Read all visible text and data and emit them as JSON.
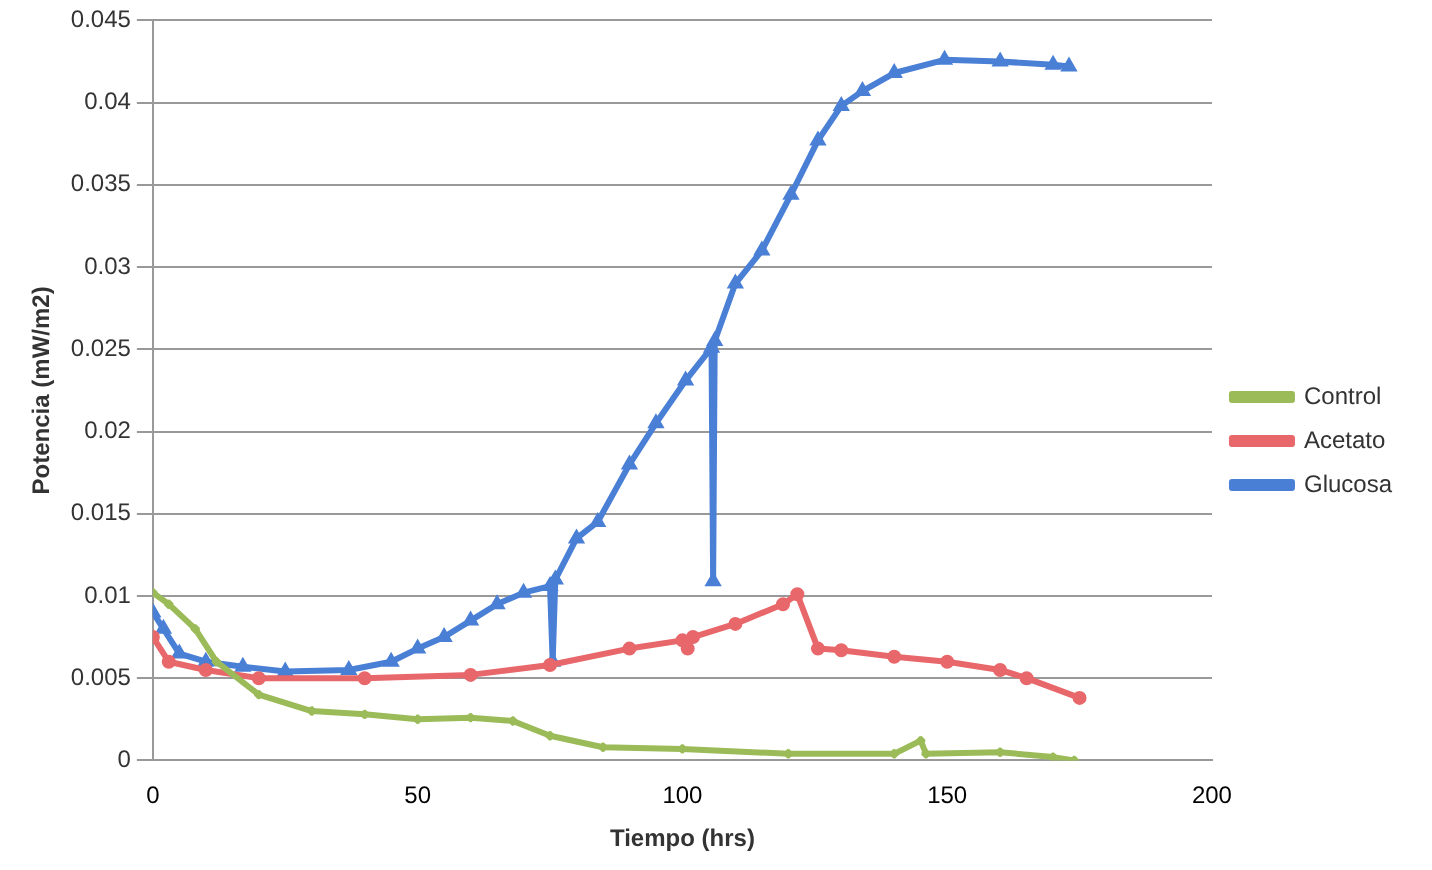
{
  "chart_data": {
    "type": "line",
    "xlabel": "Tiempo (hrs)",
    "ylabel": "Potencia (mW/m2)",
    "xlim": [
      0,
      200
    ],
    "xticks": [
      0,
      50,
      100,
      150,
      200
    ],
    "ylim": [
      0,
      0.045
    ],
    "yticks": [
      0,
      0.005,
      0.01,
      0.015,
      0.02,
      0.025,
      0.03,
      0.035,
      0.04,
      0.045
    ],
    "grid": "y",
    "legend": "right",
    "series": [
      {
        "name": "Glucosa",
        "color": "#4a7fd6",
        "marker": "triangle",
        "x": [
          0,
          2,
          5,
          10,
          17,
          25,
          37,
          45,
          50,
          55,
          60,
          65,
          70,
          75,
          75.5,
          76,
          80,
          84,
          90,
          95,
          100.6,
          105.5,
          105.8,
          106.1,
          110,
          115,
          120.5,
          125.6,
          130,
          134,
          140,
          149.5,
          160,
          170,
          173
        ],
        "values": [
          0.009,
          0.008,
          0.0065,
          0.006,
          0.0057,
          0.0054,
          0.0055,
          0.006,
          0.0068,
          0.0075,
          0.0085,
          0.0095,
          0.0102,
          0.0106,
          0.006,
          0.011,
          0.0135,
          0.0145,
          0.018,
          0.0205,
          0.0231,
          0.0251,
          0.0109,
          0.0255,
          0.029,
          0.031,
          0.0344,
          0.0377,
          0.0398,
          0.0407,
          0.0418,
          0.0426,
          0.0425,
          0.0423,
          0.0422
        ]
      },
      {
        "name": "Acetato",
        "color": "#e8676a",
        "marker": "circle",
        "x": [
          0,
          3,
          10,
          20,
          40,
          60,
          75,
          90,
          100,
          101,
          102,
          110,
          119,
          121.7,
          125.6,
          130,
          140,
          150,
          160,
          165,
          175
        ],
        "values": [
          0.0075,
          0.006,
          0.0055,
          0.005,
          0.005,
          0.0052,
          0.0058,
          0.0068,
          0.0073,
          0.0068,
          0.0075,
          0.0083,
          0.0095,
          0.0101,
          0.0068,
          0.0067,
          0.0063,
          0.006,
          0.0055,
          0.005,
          0.0038
        ]
      },
      {
        "name": "Control",
        "color": "#9bbb59",
        "marker": "cross",
        "x": [
          0,
          3,
          8,
          12,
          20,
          30,
          40,
          50,
          60,
          68,
          75,
          85,
          100,
          120,
          140,
          145,
          146,
          160,
          170,
          174
        ],
        "values": [
          0.0102,
          0.0095,
          0.008,
          0.006,
          0.004,
          0.003,
          0.0028,
          0.0025,
          0.0026,
          0.0024,
          0.0015,
          0.0008,
          0.0007,
          0.0004,
          0.0004,
          0.0012,
          0.0004,
          0.0005,
          0.0002,
          0
        ]
      }
    ]
  }
}
